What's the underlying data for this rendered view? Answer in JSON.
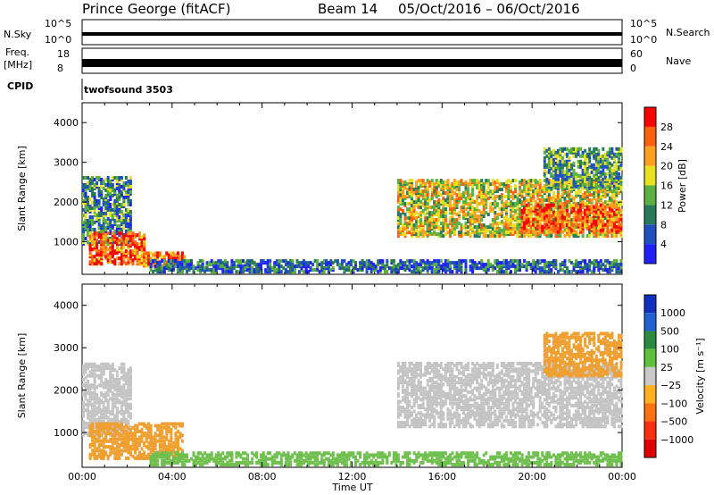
{
  "header": {
    "station": "Prince George (fitACF)",
    "beam": "Beam 14",
    "dates": "05/Oct/2016 – 06/Oct/2016"
  },
  "strips": {
    "nsky_label": "N.Sky",
    "nsky_ticks": [
      "10^5",
      "10^0"
    ],
    "freq_label_1": "Freq.",
    "freq_label_2": "[MHz]",
    "freq_ticks": [
      "18",
      "8"
    ],
    "nave_ticks": [
      "60",
      "0"
    ],
    "nsearch_label": "N.Search",
    "nave_label": "Nave",
    "cpid_label": "CPID",
    "cpid_value": "twofsound 3503"
  },
  "chart_data": [
    {
      "type": "heatmap",
      "name": "power",
      "title": "",
      "ylabel": "Slant Range [km]",
      "xlabel": "",
      "y_ticks": [
        1000,
        2000,
        3000,
        4000
      ],
      "x_ticks": [
        "00:00",
        "04:00",
        "08:00",
        "12:00",
        "16:00",
        "20:00",
        "00:00"
      ],
      "x_range_hours": [
        0,
        24
      ],
      "y_range_km": [
        180,
        4500
      ],
      "colorbar": {
        "label": "Power [dB]",
        "ticks": [
          4,
          8,
          12,
          16,
          20,
          24,
          28
        ],
        "range": [
          0,
          32
        ],
        "colors": [
          "#2020ff",
          "#2050c0",
          "#2a7a5a",
          "#5ab040",
          "#e8e020",
          "#ffa020",
          "#ff6010",
          "#ff0000"
        ]
      },
      "regions": [
        {
          "t0": 0.0,
          "t1": 2.2,
          "r0": 900,
          "r1": 2600,
          "level": 10
        },
        {
          "t0": 0.3,
          "t1": 2.8,
          "r0": 400,
          "r1": 1200,
          "level": 26
        },
        {
          "t0": 2.5,
          "t1": 4.5,
          "r0": 350,
          "r1": 700,
          "level": 26
        },
        {
          "t0": 3.0,
          "t1": 24.0,
          "r0": 200,
          "r1": 500,
          "level": 8
        },
        {
          "t0": 14.0,
          "t1": 24.0,
          "r0": 1100,
          "r1": 2500,
          "level": 18
        },
        {
          "t0": 19.5,
          "t1": 24.0,
          "r0": 1200,
          "r1": 1900,
          "level": 26
        },
        {
          "t0": 20.5,
          "t1": 24.0,
          "r0": 2300,
          "r1": 3300,
          "level": 12
        }
      ]
    },
    {
      "type": "heatmap",
      "name": "velocity",
      "title": "",
      "ylabel": "Slant Range [km]",
      "xlabel": "Time UT",
      "y_ticks": [
        1000,
        2000,
        3000,
        4000
      ],
      "x_ticks": [
        "00:00",
        "04:00",
        "08:00",
        "12:00",
        "16:00",
        "20:00",
        "00:00"
      ],
      "x_range_hours": [
        0,
        24
      ],
      "y_range_km": [
        180,
        4500
      ],
      "colorbar": {
        "label": "Velocity [m s⁻¹]",
        "ticks": [
          "1000",
          "500",
          "100",
          "25",
          "−25",
          "−100",
          "−500",
          "−1000"
        ],
        "colors": [
          "#1030c0",
          "#2060d0",
          "#2a8a40",
          "#60c040",
          "#c8c8c8",
          "#ffb020",
          "#ff7010",
          "#ff3010",
          "#e00000"
        ]
      },
      "regions": [
        {
          "t0": 0.0,
          "t1": 2.2,
          "r0": 900,
          "r1": 2600,
          "vel": "gray"
        },
        {
          "t0": 0.3,
          "t1": 4.5,
          "r0": 350,
          "r1": 1200,
          "vel": "orange"
        },
        {
          "t0": 3.0,
          "t1": 24.0,
          "r0": 200,
          "r1": 500,
          "vel": "green"
        },
        {
          "t0": 14.0,
          "t1": 24.0,
          "r0": 1100,
          "r1": 2600,
          "vel": "gray"
        },
        {
          "t0": 20.5,
          "t1": 24.0,
          "r0": 2300,
          "r1": 3300,
          "vel": "orange"
        }
      ]
    }
  ]
}
